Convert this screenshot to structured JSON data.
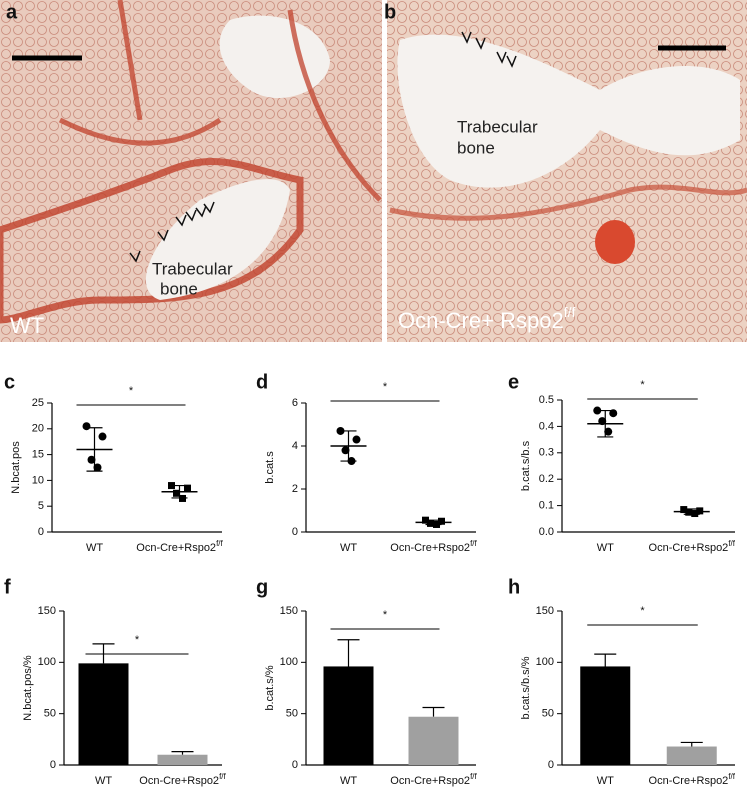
{
  "images": [
    {
      "panel": "a",
      "annotation": [
        "Trabecular",
        "bone"
      ],
      "caption": "WT"
    },
    {
      "panel": "b",
      "annotation": [
        "Trabecular",
        "bone"
      ],
      "caption": "Ocn-Cre+ Rspo2",
      "caption_superscript": "f/f"
    }
  ],
  "chart_data": [
    {
      "type": "dot",
      "panel": "c",
      "y_label": "N.bcat.pos",
      "annotation": "*",
      "categories": [
        "WT",
        "Ocn-Cre+Rspo2"
      ],
      "category_superscripts": [
        null,
        "f/f"
      ],
      "points": [
        [
          20.5,
          18.5,
          14,
          12.5
        ],
        [
          9,
          8.5,
          7.5,
          6.5
        ]
      ],
      "values": [
        16,
        7.8
      ],
      "errors": [
        4.2,
        1.2
      ],
      "markers": [
        "circle",
        "square"
      ],
      "color": "#000000",
      "ylim": [
        0,
        25
      ],
      "yticks": [
        0,
        5,
        10,
        15,
        20,
        25
      ]
    },
    {
      "type": "dot",
      "panel": "d",
      "y_label": "b.cat.s",
      "annotation": "*",
      "categories": [
        "WT",
        "Ocn-Cre+Rspo2"
      ],
      "category_superscripts": [
        null,
        "f/f"
      ],
      "points": [
        [
          4.7,
          4.3,
          3.8,
          3.3
        ],
        [
          0.55,
          0.5,
          0.4,
          0.35
        ]
      ],
      "values": [
        4.0,
        0.45
      ],
      "errors": [
        0.7,
        0.1
      ],
      "markers": [
        "circle",
        "square"
      ],
      "color": "#000000",
      "ylim": [
        0,
        6
      ],
      "yticks": [
        0,
        2,
        4,
        6
      ]
    },
    {
      "type": "dot",
      "panel": "e",
      "y_label": "b.cat.s/b.s",
      "annotation": "*",
      "categories": [
        "WT",
        "Ocn-Cre+Rspo2"
      ],
      "category_superscripts": [
        null,
        "f/f"
      ],
      "points": [
        [
          0.46,
          0.45,
          0.42,
          0.38
        ],
        [
          0.085,
          0.08,
          0.075,
          0.07
        ]
      ],
      "values": [
        0.41,
        0.077
      ],
      "errors": [
        0.05,
        0.01
      ],
      "markers": [
        "circle",
        "square"
      ],
      "color": "#000000",
      "ylim": [
        0,
        0.5
      ],
      "yticks": [
        {
          "value": 0,
          "label": "0.0"
        },
        0.1,
        0.2,
        0.3,
        0.4,
        0.5
      ]
    },
    {
      "type": "bar",
      "panel": "f",
      "y_label": "N.bcat.pos/%",
      "annotation": "*",
      "categories": [
        "WT",
        "Ocn-Cre+Rspo2"
      ],
      "category_superscripts": [
        null,
        "f/f"
      ],
      "values": [
        99,
        10
      ],
      "errors": [
        19,
        3
      ],
      "colors": [
        "#000000",
        "#a0a0a0"
      ],
      "ylim": [
        0,
        150
      ],
      "yticks": [
        0,
        50,
        100,
        150
      ]
    },
    {
      "type": "bar",
      "panel": "g",
      "y_label": "b.cat.s/%",
      "annotation": "*",
      "categories": [
        "WT",
        "Ocn-Cre+Rspo2"
      ],
      "category_superscripts": [
        null,
        "f/f"
      ],
      "values": [
        96,
        47
      ],
      "errors": [
        26,
        9
      ],
      "colors": [
        "#000000",
        "#a0a0a0"
      ],
      "ylim": [
        0,
        150
      ],
      "yticks": [
        0,
        50,
        100,
        150
      ]
    },
    {
      "type": "bar",
      "panel": "h",
      "y_label": "b.cat.s/b.s/%",
      "annotation": "*",
      "categories": [
        "WT",
        "Ocn-Cre+Rspo2"
      ],
      "category_superscripts": [
        null,
        "f/f"
      ],
      "values": [
        96,
        18
      ],
      "errors": [
        12,
        4
      ],
      "colors": [
        "#000000",
        "#a0a0a0"
      ],
      "ylim": [
        0,
        150
      ],
      "yticks": [
        0,
        50,
        100,
        150
      ]
    }
  ]
}
